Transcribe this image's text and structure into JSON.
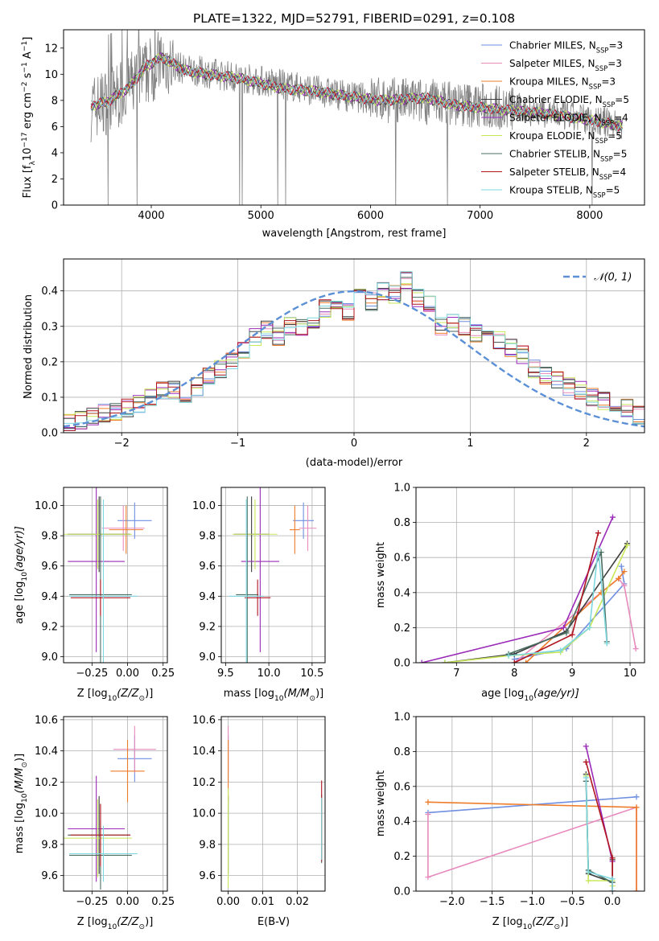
{
  "figure_title": "PLATE=1322, MJD=52791, FIBERID=0291, z=0.108",
  "colors": {
    "Chabrier MILES": "#6f8fe0",
    "Salpeter MILES": "#e88bbd",
    "Kroupa MILES": "#ee7d2b",
    "Chabrier ELODIE": "#3d3d3d",
    "Salpeter ELODIE": "#9b2ab8",
    "Kroupa ELODIE": "#c8e85a",
    "Chabrier STELIB": "#4a6f62",
    "Salpeter STELIB": "#b0141e",
    "Kroupa STELIB": "#7fd8e0",
    "data": "#808080",
    "gaussian": "#5b8fd6"
  },
  "chart_data": [
    {
      "id": "spectrum",
      "type": "line",
      "xlabel": "wavelength [Angstrom, rest frame]",
      "ylabel_main": "Flux [f",
      "ylabel_sub": "λ",
      "ylabel_rest": "10",
      "ylabel_exp": "−17",
      "ylabel_tail": " erg cm",
      "ylabel_exp2": "−2",
      "ylabel_tail2": " s",
      "ylabel_exp3": "−1",
      "ylabel_tail3": " A",
      "ylabel_exp4": "−1",
      "ylabel_end": "]",
      "xlim": [
        3200,
        8500
      ],
      "ylim": [
        0,
        13.4
      ],
      "xticks": [
        4000,
        5000,
        6000,
        7000,
        8000
      ],
      "yticks": [
        0,
        2,
        4,
        6,
        8,
        10,
        12
      ],
      "legend": [
        {
          "name": "Chabrier MILES",
          "n": "3"
        },
        {
          "name": "Salpeter MILES",
          "n": "3"
        },
        {
          "name": "Kroupa MILES",
          "n": "3"
        },
        {
          "name": "Chabrier ELODIE",
          "n": "5"
        },
        {
          "name": "Salpeter ELODIE",
          "n": "4"
        },
        {
          "name": "Kroupa ELODIE",
          "n": "5"
        },
        {
          "name": "Chabrier STELIB",
          "n": "5"
        },
        {
          "name": "Salpeter STELIB",
          "n": "4"
        },
        {
          "name": "Kroupa STELIB",
          "n": "5"
        }
      ],
      "legend_sub": "SSP",
      "legend_placement": "upper right",
      "continuum": [
        [
          3450,
          7.4
        ],
        [
          3700,
          8.4
        ],
        [
          3900,
          9.8
        ],
        [
          4100,
          11.0
        ],
        [
          4300,
          10.4
        ],
        [
          4600,
          10.0
        ],
        [
          5000,
          9.5
        ],
        [
          5400,
          8.9
        ],
        [
          5800,
          8.3
        ],
        [
          6200,
          8.0
        ],
        [
          6600,
          7.9
        ],
        [
          7000,
          7.6
        ],
        [
          7400,
          7.3
        ],
        [
          7800,
          6.8
        ],
        [
          8300,
          6.1
        ]
      ],
      "model_lines": [
        [
          3450,
          7.6
        ],
        [
          3600,
          7.9
        ],
        [
          3800,
          9.0
        ],
        [
          3950,
          10.6
        ],
        [
          4100,
          11.3
        ],
        [
          4300,
          10.3
        ],
        [
          4500,
          10.0
        ],
        [
          4800,
          9.7
        ],
        [
          5000,
          9.3
        ],
        [
          5200,
          8.9
        ],
        [
          5500,
          8.7
        ],
        [
          5800,
          8.3
        ],
        [
          6100,
          8.0
        ],
        [
          6500,
          8.2
        ],
        [
          6800,
          7.6
        ],
        [
          7200,
          7.3
        ],
        [
          7600,
          7.0
        ],
        [
          8000,
          6.5
        ],
        [
          8300,
          6.0
        ]
      ]
    },
    {
      "id": "residuals",
      "type": "histogram",
      "xlabel": "(data-model)/error",
      "ylabel": "Normed distribution",
      "xlim": [
        -2.5,
        2.5
      ],
      "ylim": [
        0,
        0.49
      ],
      "xticks": [
        -2,
        -1,
        0,
        1,
        2
      ],
      "yticks": [
        0.0,
        0.1,
        0.2,
        0.3,
        0.4
      ],
      "gaussian_label": "𝒩(0, 1)",
      "bin_edges_start": -2.5,
      "bin_width": 0.1,
      "hist": [
        0.03,
        0.035,
        0.045,
        0.055,
        0.06,
        0.07,
        0.08,
        0.1,
        0.12,
        0.12,
        0.11,
        0.13,
        0.16,
        0.18,
        0.2,
        0.23,
        0.27,
        0.29,
        0.27,
        0.3,
        0.3,
        0.32,
        0.35,
        0.36,
        0.34,
        0.38,
        0.37,
        0.4,
        0.39,
        0.43,
        0.38,
        0.36,
        0.3,
        0.31,
        0.3,
        0.28,
        0.27,
        0.26,
        0.24,
        0.22,
        0.18,
        0.16,
        0.15,
        0.13,
        0.12,
        0.1,
        0.09,
        0.08,
        0.07,
        0.05
      ]
    },
    {
      "id": "age_Z",
      "type": "errorbar",
      "xlabel": "Z [log",
      "xlabel_sub": "10",
      "xlabel_rest": "(Z/Z",
      "xlabel_sub2": "⊙",
      "xlabel_end": ")]",
      "ylabel": "age  [log",
      "ylabel_sub": "10",
      "ylabel_rest": "(age/yr)]",
      "xlim": [
        -0.45,
        0.28
      ],
      "ylim": [
        8.96,
        10.12
      ],
      "xticks": [
        -0.25,
        0.0,
        0.25
      ],
      "yticks": [
        9.0,
        9.2,
        9.4,
        9.6,
        9.8,
        10.0
      ],
      "points": [
        {
          "s": "Chabrier MILES",
          "x": 0.05,
          "y": 9.9,
          "xerr": 0.12,
          "yerr": 0.12
        },
        {
          "s": "Salpeter MILES",
          "x": -0.03,
          "y": 9.85,
          "xerr": 0.15,
          "yerr": 0.15
        },
        {
          "s": "Kroupa MILES",
          "x": -0.01,
          "y": 9.84,
          "xerr": 0.12,
          "yerr": 0.16
        },
        {
          "s": "Chabrier ELODIE",
          "x": -0.2,
          "y": 9.81,
          "xerr": 0.22,
          "yerr": 0.25
        },
        {
          "s": "Salpeter ELODIE",
          "x": -0.22,
          "y": 9.63,
          "xerr": 0.2,
          "yerr": 0.6
        },
        {
          "s": "Kroupa ELODIE",
          "x": -0.21,
          "y": 9.81,
          "xerr": 0.24,
          "yerr": 0.23
        },
        {
          "s": "Chabrier STELIB",
          "x": -0.19,
          "y": 9.41,
          "xerr": 0.22,
          "yerr": 0.65
        },
        {
          "s": "Salpeter STELIB",
          "x": -0.19,
          "y": 9.39,
          "xerr": 0.21,
          "yerr": 0.12
        },
        {
          "s": "Kroupa STELIB",
          "x": -0.17,
          "y": 9.4,
          "xerr": 0.24,
          "yerr": 0.64
        }
      ]
    },
    {
      "id": "age_mass",
      "type": "errorbar",
      "xlabel": "mass [log",
      "xlabel_sub": "10",
      "xlabel_rest": "(M/M",
      "xlabel_sub2": "⊙",
      "xlabel_end": ")]",
      "xlim": [
        9.45,
        10.65
      ],
      "ylim": [
        8.96,
        10.12
      ],
      "xticks": [
        9.5,
        10.0,
        10.5
      ],
      "yticks": [
        9.0,
        9.2,
        9.4,
        9.6,
        9.8,
        10.0
      ],
      "points": [
        {
          "s": "Chabrier MILES",
          "x": 10.4,
          "y": 9.9,
          "xerr": 0.12,
          "yerr": 0.12
        },
        {
          "s": "Salpeter MILES",
          "x": 10.45,
          "y": 9.85,
          "xerr": 0.1,
          "yerr": 0.15
        },
        {
          "s": "Kroupa MILES",
          "x": 10.3,
          "y": 9.84,
          "xerr": 0.06,
          "yerr": 0.16
        },
        {
          "s": "Chabrier ELODIE",
          "x": 9.8,
          "y": 9.81,
          "xerr": 0.2,
          "yerr": 0.25
        },
        {
          "s": "Salpeter ELODIE",
          "x": 9.9,
          "y": 9.63,
          "xerr": 0.22,
          "yerr": 0.6
        },
        {
          "s": "Kroupa ELODIE",
          "x": 9.84,
          "y": 9.81,
          "xerr": 0.26,
          "yerr": 0.23
        },
        {
          "s": "Chabrier STELIB",
          "x": 9.75,
          "y": 9.41,
          "xerr": 0.13,
          "yerr": 0.65
        },
        {
          "s": "Salpeter STELIB",
          "x": 9.87,
          "y": 9.39,
          "xerr": 0.15,
          "yerr": 0.12
        },
        {
          "s": "Kroupa STELIB",
          "x": 9.74,
          "y": 9.4,
          "xerr": 0.2,
          "yerr": 0.64
        }
      ]
    },
    {
      "id": "weight_age",
      "type": "line",
      "xlabel": "age  [log",
      "xlabel_sub": "10",
      "xlabel_rest": "(age/yr)]",
      "ylabel": "mass weight",
      "xlim": [
        6.3,
        10.25
      ],
      "ylim": [
        0,
        1
      ],
      "xticks": [
        7,
        8,
        9,
        10
      ],
      "yticks": [
        0.0,
        0.2,
        0.4,
        0.6,
        0.8,
        1.0
      ],
      "series": [
        {
          "s": "Chabrier MILES",
          "x": [
            8.0,
            8.9,
            9.9,
            9.85
          ],
          "y": [
            0.02,
            0.08,
            0.45,
            0.55
          ]
        },
        {
          "s": "Salpeter MILES",
          "x": [
            8.0,
            9.8,
            9.9,
            10.1
          ],
          "y": [
            0.0,
            0.48,
            0.44,
            0.08
          ]
        },
        {
          "s": "Kroupa MILES",
          "x": [
            8.2,
            9.5,
            9.8,
            9.9
          ],
          "y": [
            0.0,
            0.4,
            0.48,
            0.52
          ]
        },
        {
          "s": "Chabrier ELODIE",
          "x": [
            6.8,
            8.0,
            8.9,
            9.95
          ],
          "y": [
            0.0,
            0.05,
            0.18,
            0.68
          ]
        },
        {
          "s": "Salpeter ELODIE",
          "x": [
            6.4,
            8.85,
            9.7
          ],
          "y": [
            0.0,
            0.2,
            0.83
          ]
        },
        {
          "s": "Kroupa ELODIE",
          "x": [
            6.8,
            7.9,
            8.8,
            9.3,
            9.95
          ],
          "y": [
            0.0,
            0.04,
            0.06,
            0.2,
            0.67
          ]
        },
        {
          "s": "Chabrier STELIB",
          "x": [
            7.9,
            8.9,
            9.5,
            9.6
          ],
          "y": [
            0.05,
            0.17,
            0.63,
            0.12
          ]
        },
        {
          "s": "Salpeter STELIB",
          "x": [
            8.0,
            9.0,
            9.45
          ],
          "y": [
            0.0,
            0.16,
            0.74
          ]
        },
        {
          "s": "Kroupa STELIB",
          "x": [
            7.9,
            8.8,
            9.3,
            9.45,
            9.6
          ],
          "y": [
            0.04,
            0.07,
            0.2,
            0.65,
            0.11
          ]
        }
      ]
    },
    {
      "id": "mass_Z",
      "type": "errorbar",
      "xlabel": "Z [log",
      "xlabel_sub": "10",
      "xlabel_rest": "(Z/Z",
      "xlabel_sub2": "⊙",
      "xlabel_end": ")]",
      "ylabel": "mass [log",
      "ylabel_sub": "10",
      "ylabel_rest": "(M/M",
      "ylabel_sub2": "⊙",
      "ylabel_end": ")]",
      "xlim": [
        -0.45,
        0.28
      ],
      "ylim": [
        9.5,
        10.62
      ],
      "xticks": [
        -0.25,
        0.0,
        0.25
      ],
      "yticks": [
        9.6,
        9.8,
        10.0,
        10.2,
        10.4,
        10.6
      ],
      "points": [
        {
          "s": "Chabrier MILES",
          "x": 0.05,
          "y": 10.35,
          "xerr": 0.12,
          "yerr": 0.15
        },
        {
          "s": "Salpeter MILES",
          "x": 0.05,
          "y": 10.41,
          "xerr": 0.15,
          "yerr": 0.15
        },
        {
          "s": "Kroupa MILES",
          "x": 0.0,
          "y": 10.27,
          "xerr": 0.12,
          "yerr": 0.2
        },
        {
          "s": "Chabrier ELODIE",
          "x": -0.2,
          "y": 9.86,
          "xerr": 0.22,
          "yerr": 0.25
        },
        {
          "s": "Salpeter ELODIE",
          "x": -0.22,
          "y": 9.9,
          "xerr": 0.2,
          "yerr": 0.34
        },
        {
          "s": "Kroupa ELODIE",
          "x": -0.21,
          "y": 9.84,
          "xerr": 0.24,
          "yerr": 0.25
        },
        {
          "s": "Chabrier STELIB",
          "x": -0.19,
          "y": 9.73,
          "xerr": 0.22,
          "yerr": 0.22
        },
        {
          "s": "Salpeter STELIB",
          "x": -0.19,
          "y": 9.86,
          "xerr": 0.21,
          "yerr": 0.2
        },
        {
          "s": "Kroupa STELIB",
          "x": -0.17,
          "y": 9.74,
          "xerr": 0.24,
          "yerr": 0.18
        }
      ]
    },
    {
      "id": "mass_ebv",
      "type": "errorbar",
      "xlabel": "E(B-V)",
      "xlim": [
        -0.002,
        0.028
      ],
      "ylim": [
        9.5,
        10.62
      ],
      "xticks": [
        0.0,
        0.01,
        0.02
      ],
      "yticks": [
        9.6,
        9.8,
        10.0,
        10.2,
        10.4,
        10.6
      ],
      "points": [
        {
          "s": "Chabrier MILES",
          "x": 0.0,
          "y": 10.35,
          "xerr": 0.0,
          "yerr": 0.15
        },
        {
          "s": "Salpeter MILES",
          "x": 0.0,
          "y": 10.41,
          "xerr": 0.0,
          "yerr": 0.15
        },
        {
          "s": "Kroupa MILES",
          "x": 0.0,
          "y": 10.27,
          "xerr": 0.0,
          "yerr": 0.2
        },
        {
          "s": "Chabrier ELODIE",
          "x": 0.0,
          "y": 9.86,
          "xerr": 0.0,
          "yerr": 0.25
        },
        {
          "s": "Kroupa ELODIE",
          "x": 0.0,
          "y": 9.84,
          "xerr": 0.0,
          "yerr": 0.32
        },
        {
          "s": "Chabrier STELIB",
          "x": 0.027,
          "y": 9.9,
          "xerr": 0.0,
          "yerr": 0.22
        },
        {
          "s": "Salpeter STELIB",
          "x": 0.027,
          "y": 9.95,
          "xerr": 0.0,
          "yerr": 0.26
        },
        {
          "s": "Kroupa STELIB",
          "x": 0.027,
          "y": 9.9,
          "xerr": 0.0,
          "yerr": 0.2
        }
      ]
    },
    {
      "id": "weight_Z",
      "type": "line",
      "xlabel": "Z [log",
      "xlabel_sub": "10",
      "xlabel_rest": "(Z/Z",
      "xlabel_sub2": "⊙",
      "xlabel_end": ")]",
      "ylabel": "mass weight",
      "xlim": [
        -2.45,
        0.4
      ],
      "ylim": [
        0,
        1
      ],
      "xticks": [
        -2.0,
        -1.5,
        -1.0,
        -0.5,
        0.0
      ],
      "yticks": [
        0.0,
        0.2,
        0.4,
        0.6,
        0.8,
        1.0
      ],
      "series": [
        {
          "s": "Chabrier MILES",
          "x": [
            -2.3,
            0.3
          ],
          "y": [
            0.45,
            0.54
          ]
        },
        {
          "s": "Salpeter MILES",
          "x": [
            -2.3,
            -2.3,
            0.3,
            0.3
          ],
          "y": [
            0.44,
            0.08,
            0.48,
            0.0
          ]
        },
        {
          "s": "Kroupa MILES",
          "x": [
            -2.3,
            0.3,
            0.3
          ],
          "y": [
            0.51,
            0.48,
            0.0
          ]
        },
        {
          "s": "Chabrier ELODIE",
          "x": [
            -0.33,
            -0.3,
            0.0,
            0.0
          ],
          "y": [
            0.67,
            0.1,
            0.05,
            0.18
          ]
        },
        {
          "s": "Salpeter ELODIE",
          "x": [
            -0.33,
            0.0
          ],
          "y": [
            0.83,
            0.17
          ]
        },
        {
          "s": "Kroupa ELODIE",
          "x": [
            -0.33,
            -0.3,
            0.0,
            0.0
          ],
          "y": [
            0.66,
            0.06,
            0.06,
            0.03
          ]
        },
        {
          "s": "Chabrier STELIB",
          "x": [
            -0.33,
            -0.3,
            0.0,
            0.0
          ],
          "y": [
            0.63,
            0.12,
            0.05,
            0.0
          ]
        },
        {
          "s": "Salpeter STELIB",
          "x": [
            -0.33,
            0.0,
            0.0
          ],
          "y": [
            0.74,
            0.19,
            0.0
          ]
        },
        {
          "s": "Kroupa STELIB",
          "x": [
            -0.33,
            -0.3,
            0.0,
            0.0
          ],
          "y": [
            0.65,
            0.11,
            0.07,
            0.0
          ]
        }
      ]
    }
  ]
}
